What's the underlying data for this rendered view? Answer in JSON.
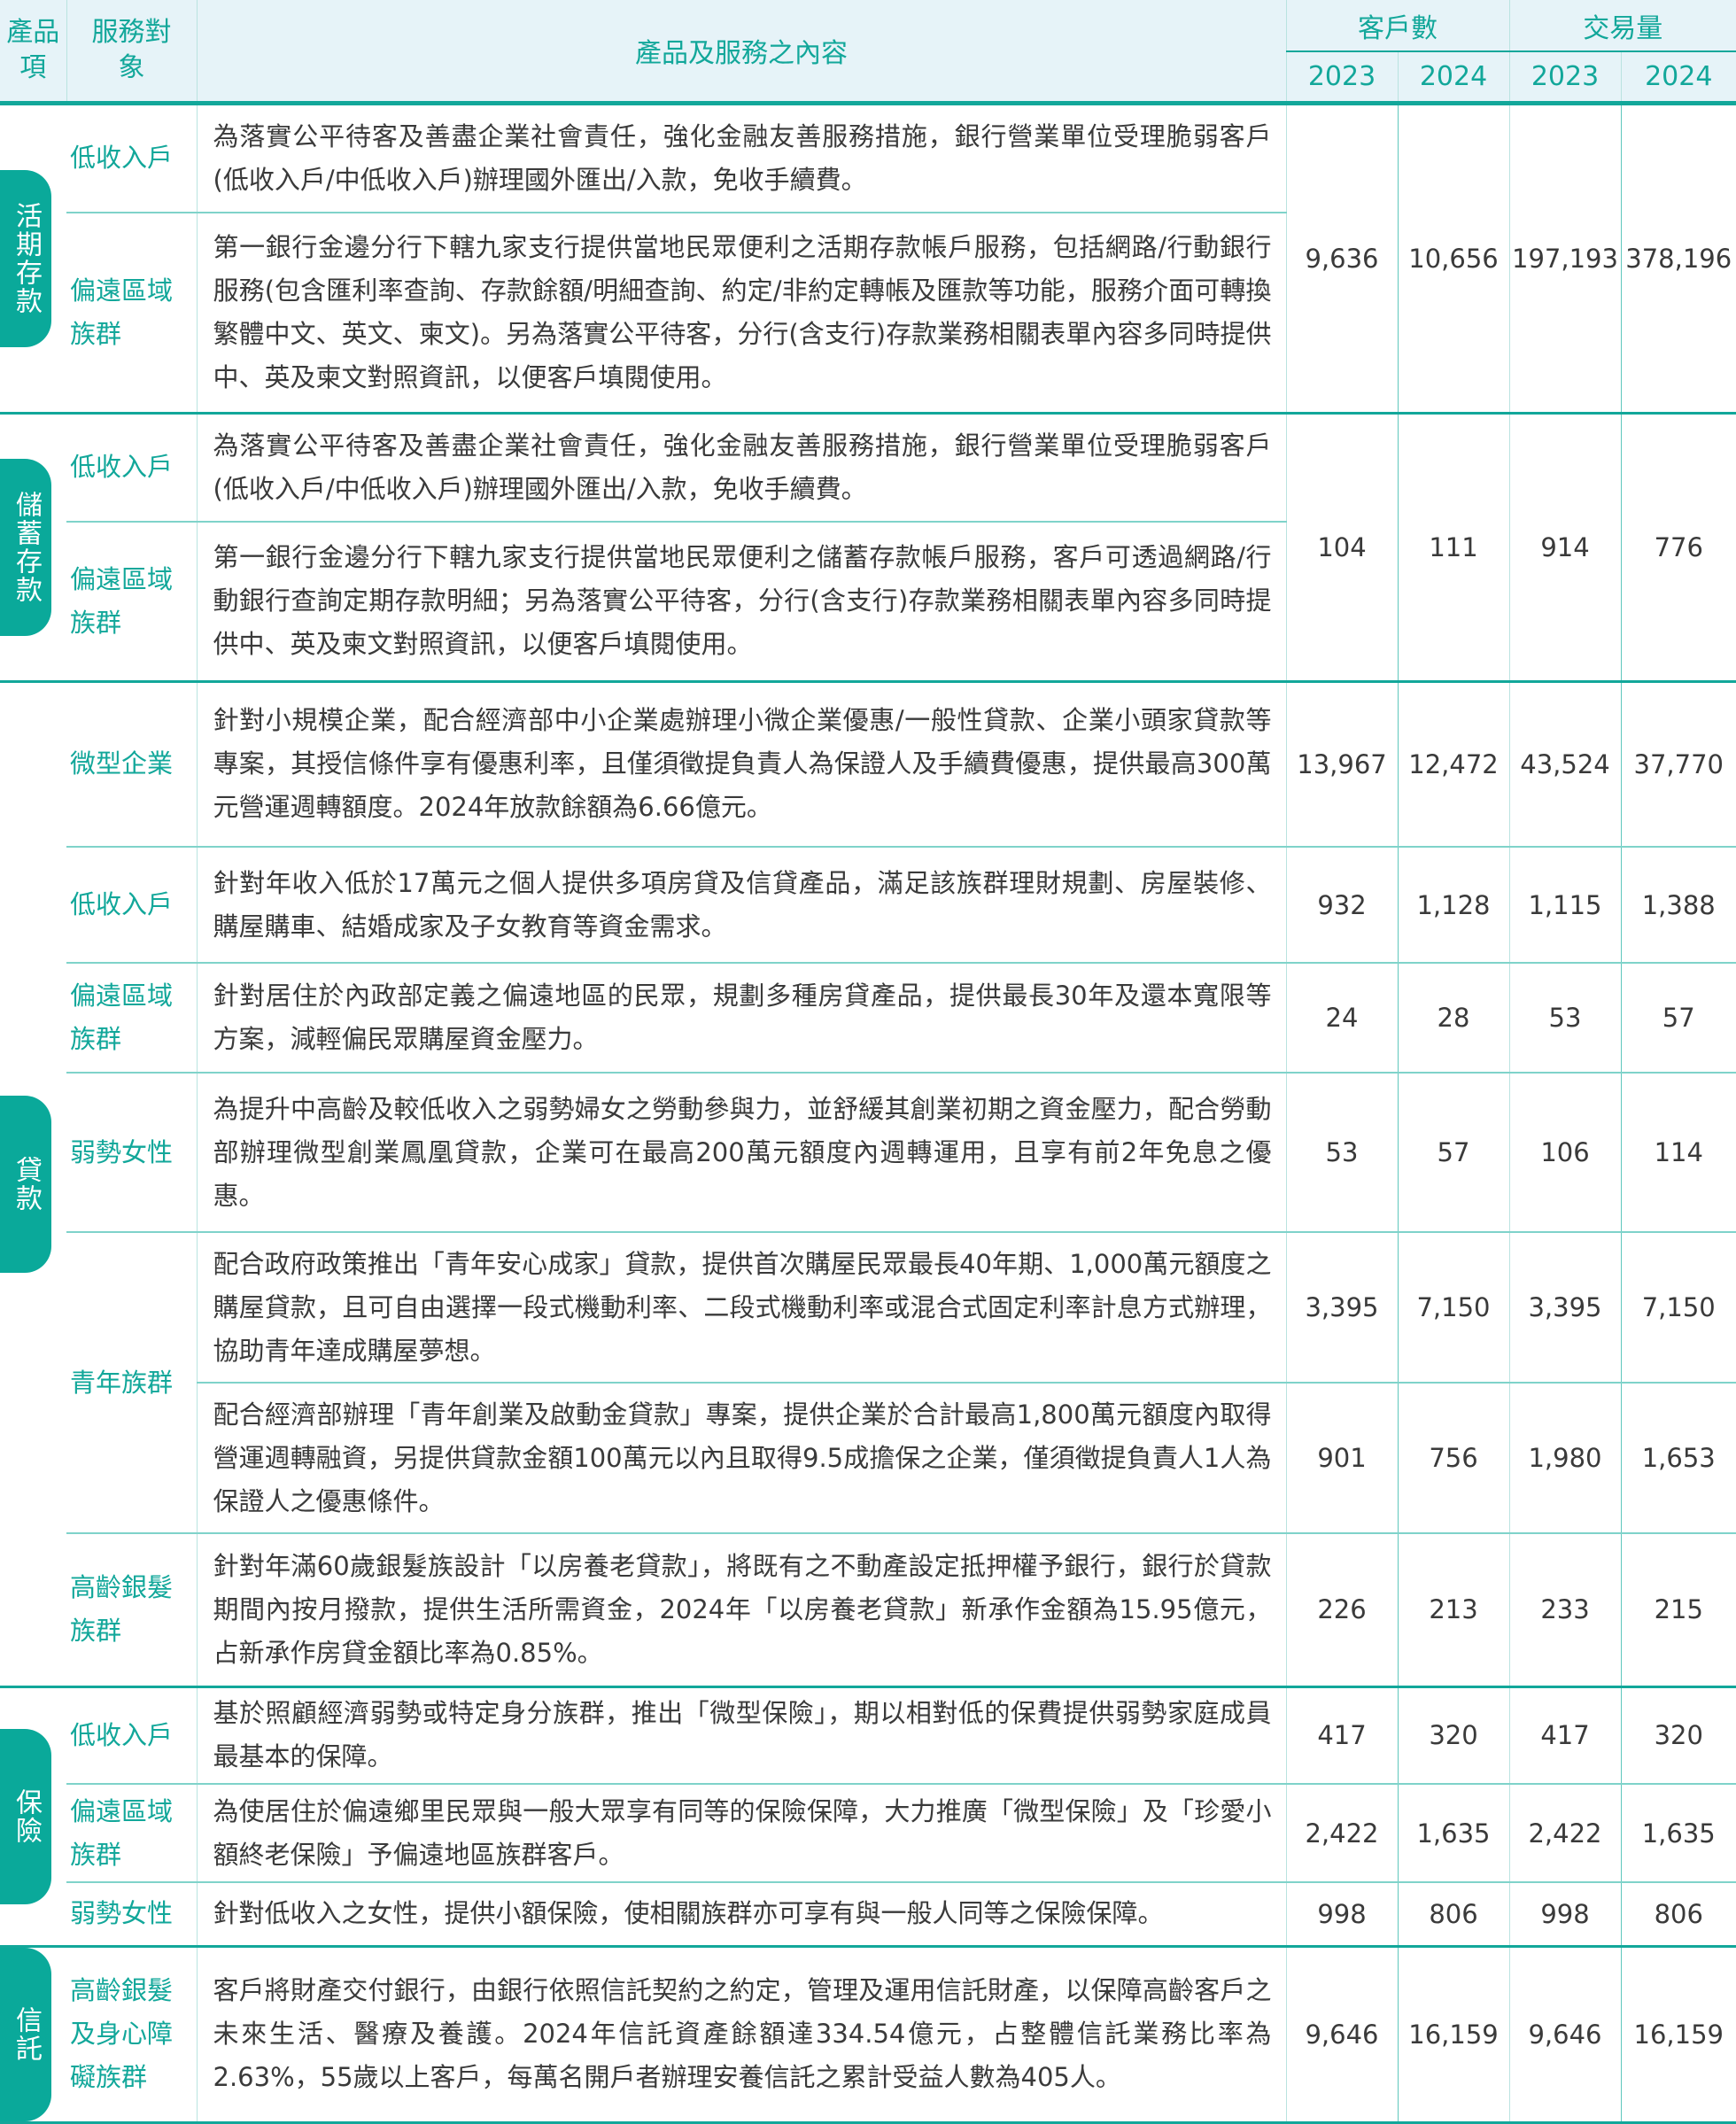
{
  "header": {
    "category": "產品項",
    "target": "服務對象",
    "content": "產品及服務之內容",
    "customers": "客戶數",
    "volume": "交易量",
    "years": [
      "2023",
      "2024",
      "2023",
      "2024"
    ]
  },
  "accent_color": "#12a79a",
  "groups": [
    {
      "category": "活期存款",
      "rows": [
        {
          "target": "低收入戶",
          "content": "為落實公平待客及善盡企業社會責任，強化金融友善服務措施，銀行營業單位受理脆弱客戶(低收入戶/中低收入戶)辦理國外匯出/入款，免收手續費。",
          "values": [
            "9,636",
            "10,656",
            "197,193",
            "378,196"
          ]
        },
        {
          "target": "偏遠區域族群",
          "content": "第一銀行金邊分行下轄九家支行提供當地民眾便利之活期存款帳戶服務，包括網路/行動銀行服務(包含匯利率查詢、存款餘額/明細查詢、約定/非約定轉帳及匯款等功能，服務介面可轉換繁體中文、英文、柬文)。另為落實公平待客，分行(含支行)存款業務相關表單內容多同時提供中、英及柬文對照資訊，以便客戶填閱使用。"
        }
      ]
    },
    {
      "category": "儲蓄存款",
      "rows": [
        {
          "target": "低收入戶",
          "content": "為落實公平待客及善盡企業社會責任，強化金融友善服務措施，銀行營業單位受理脆弱客戶(低收入戶/中低收入戶)辦理國外匯出/入款，免收手續費。",
          "values": [
            "104",
            "111",
            "914",
            "776"
          ]
        },
        {
          "target": "偏遠區域族群",
          "content": "第一銀行金邊分行下轄九家支行提供當地民眾便利之儲蓄存款帳戶服務，客戶可透過網路/行動銀行查詢定期存款明細；另為落實公平待客，分行(含支行)存款業務相關表單內容多同時提供中、英及柬文對照資訊，以便客戶填閱使用。"
        }
      ]
    },
    {
      "category": "貸款",
      "rows": [
        {
          "target": "微型企業",
          "content": "針對小規模企業，配合經濟部中小企業處辦理小微企業優惠/一般性貸款、企業小頭家貸款等專案，其授信條件享有優惠利率，且僅須徵提負責人為保證人及手續費優惠，提供最高300萬元營運週轉額度。2024年放款餘額為6.66億元。",
          "values": [
            "13,967",
            "12,472",
            "43,524",
            "37,770"
          ]
        },
        {
          "target": "低收入戶",
          "content": "針對年收入低於17萬元之個人提供多項房貸及信貸產品，滿足該族群理財規劃、房屋裝修、購屋購車、結婚成家及子女教育等資金需求。",
          "values": [
            "932",
            "1,128",
            "1,115",
            "1,388"
          ]
        },
        {
          "target": "偏遠區域族群",
          "content": "針對居住於內政部定義之偏遠地區的民眾，規劃多種房貸產品，提供最長30年及還本寬限等方案，減輕偏民眾購屋資金壓力。",
          "values": [
            "24",
            "28",
            "53",
            "57"
          ]
        },
        {
          "target": "弱勢女性",
          "content": "為提升中高齡及較低收入之弱勢婦女之勞動參與力，並舒緩其創業初期之資金壓力，配合勞動部辦理微型創業鳳凰貸款，企業可在最高200萬元額度內週轉運用，且享有前2年免息之優惠。",
          "values": [
            "53",
            "57",
            "106",
            "114"
          ]
        },
        {
          "target": "青年族群",
          "content": "配合政府政策推出「青年安心成家」貸款，提供首次購屋民眾最長40年期、1,000萬元額度之購屋貸款，且可自由選擇一段式機動利率、二段式機動利率或混合式固定利率計息方式辦理，協助青年達成購屋夢想。",
          "values": [
            "3,395",
            "7,150",
            "3,395",
            "7,150"
          ]
        },
        {
          "content": "配合經濟部辦理「青年創業及啟動金貸款」專案，提供企業於合計最高1,800萬元額度內取得營運週轉融資，另提供貸款金額100萬元以內且取得9.5成擔保之企業，僅須徵提負責人1人為保證人之優惠條件。",
          "values": [
            "901",
            "756",
            "1,980",
            "1,653"
          ]
        },
        {
          "target": "高齡銀髮族群",
          "content": "針對年滿60歲銀髮族設計「以房養老貸款」，將既有之不動產設定抵押權予銀行，銀行於貸款期間內按月撥款，提供生活所需資金，2024年「以房養老貸款」新承作金額為15.95億元，占新承作房貸金額比率為0.85%。",
          "values": [
            "226",
            "213",
            "233",
            "215"
          ]
        }
      ]
    },
    {
      "category": "保險",
      "rows": [
        {
          "target": "低收入戶",
          "content": "基於照顧經濟弱勢或特定身分族群，推出「微型保險」，期以相對低的保費提供弱勢家庭成員最基本的保障。",
          "values": [
            "417",
            "320",
            "417",
            "320"
          ]
        },
        {
          "target": "偏遠區域族群",
          "content": "為使居住於偏遠鄉里民眾與一般大眾享有同等的保險保障，大力推廣「微型保險」及「珍愛小額終老保險」予偏遠地區族群客戶。",
          "values": [
            "2,422",
            "1,635",
            "2,422",
            "1,635"
          ]
        },
        {
          "target": "弱勢女性",
          "content": "針對低收入之女性，提供小額保險，使相關族群亦可享有與一般人同等之保險保障。",
          "values": [
            "998",
            "806",
            "998",
            "806"
          ]
        }
      ]
    },
    {
      "category": "信託",
      "rows": [
        {
          "target": "高齡銀髮及身心障礙族群",
          "content": "客戶將財產交付銀行，由銀行依照信託契約之約定，管理及運用信託財產，以保障高齡客戶之未來生活、醫療及養護。2024年信託資產餘額達334.54億元，占整體信託業務比率為2.63%，55歲以上客戶，每萬名開戶者辦理安養信託之累計受益人數為405人。",
          "values": [
            "9,646",
            "16,159",
            "9,646",
            "16,159"
          ]
        }
      ]
    }
  ]
}
